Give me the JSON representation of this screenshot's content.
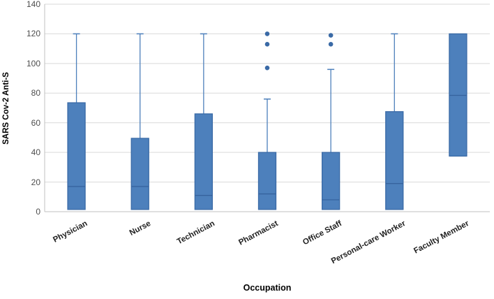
{
  "chart_data": {
    "type": "boxplot",
    "title": "",
    "xlabel": "Occupation",
    "ylabel": "SARS Cov-2 Anti-S",
    "ylim": [
      0,
      140
    ],
    "yticks": [
      0,
      20,
      40,
      60,
      80,
      100,
      120,
      140
    ],
    "grid": "horizontal",
    "legend": "none",
    "categories": [
      "Physician",
      "Nurse",
      "Technician",
      "Pharmacist",
      "Office Staff",
      "Personal-care Worker",
      "Faculty Member"
    ],
    "boxes": [
      {
        "category": "Physician",
        "q1": 1.5,
        "median": 17,
        "q3": 73.5,
        "whisker_low": null,
        "whisker_high": 120,
        "outliers": []
      },
      {
        "category": "Nurse",
        "q1": 1.5,
        "median": 17,
        "q3": 49.5,
        "whisker_low": null,
        "whisker_high": 120,
        "outliers": []
      },
      {
        "category": "Technician",
        "q1": 1.5,
        "median": 11,
        "q3": 66,
        "whisker_low": null,
        "whisker_high": 120,
        "outliers": []
      },
      {
        "category": "Pharmacist",
        "q1": 1.5,
        "median": 12,
        "q3": 40,
        "whisker_low": null,
        "whisker_high": 76,
        "outliers": [
          97,
          113,
          120
        ]
      },
      {
        "category": "Office Staff",
        "q1": 1.5,
        "median": 8,
        "q3": 40,
        "whisker_low": null,
        "whisker_high": 96,
        "outliers": [
          113,
          119
        ]
      },
      {
        "category": "Personal-care Worker",
        "q1": 1.5,
        "median": 19,
        "q3": 67.5,
        "whisker_low": null,
        "whisker_high": 120,
        "outliers": []
      },
      {
        "category": "Faculty Member",
        "q1": 37.5,
        "median": 78.5,
        "q3": 120,
        "whisker_low": null,
        "whisker_high": null,
        "outliers": []
      }
    ],
    "colors": {
      "box_fill": "#4d80bc",
      "box_border": "#3a6aa6",
      "median_line": "#36639e",
      "whisker": "#4c7fbb",
      "outlier": "#3a6aa6",
      "gridline": "#d9d9d9",
      "axis_line": "#c0c0c0",
      "tick_label": "#4d4d4d",
      "axis_title": "#000000"
    }
  }
}
